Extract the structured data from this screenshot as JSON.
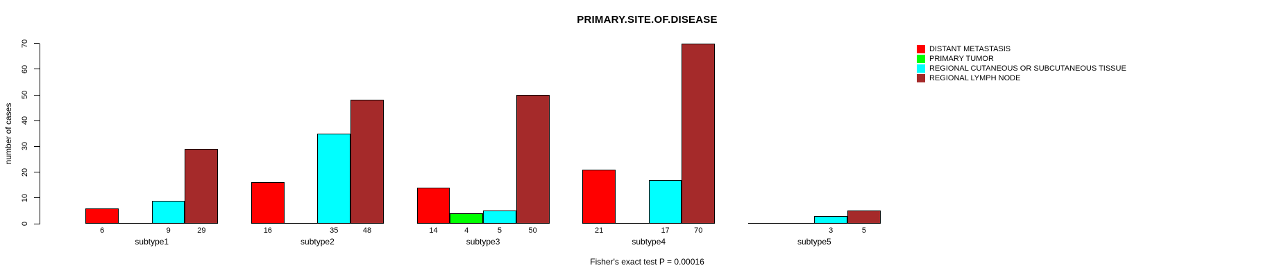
{
  "chart_data": {
    "type": "bar",
    "grouped": true,
    "title": "PRIMARY.SITE.OF.DISEASE",
    "xlabel": "",
    "ylabel": "number of cases",
    "ylim": [
      0,
      70
    ],
    "yticks": [
      0,
      10,
      20,
      30,
      40,
      50,
      60,
      70
    ],
    "grid": false,
    "legend_position": "right-outside",
    "annotation": "Fisher's exact test P = 0.00016",
    "value_label_rule": "only non-zero bar values are printed under bars",
    "categories": [
      "subtype1",
      "subtype2",
      "subtype3",
      "subtype4",
      "subtype5"
    ],
    "series": [
      {
        "name": "DISTANT METASTASIS",
        "color": "#FF0000",
        "values": [
          6,
          16,
          14,
          21,
          0
        ]
      },
      {
        "name": "PRIMARY TUMOR",
        "color": "#00FF00",
        "values": [
          0,
          0,
          4,
          0,
          0
        ]
      },
      {
        "name": "REGIONAL CUTANEOUS OR SUBCUTANEOUS TISSUE",
        "color": "#00FFFF",
        "values": [
          9,
          35,
          5,
          17,
          3
        ]
      },
      {
        "name": "REGIONAL LYMPH NODE",
        "color": "#A52A2A",
        "values": [
          29,
          48,
          50,
          70,
          5
        ]
      }
    ]
  }
}
